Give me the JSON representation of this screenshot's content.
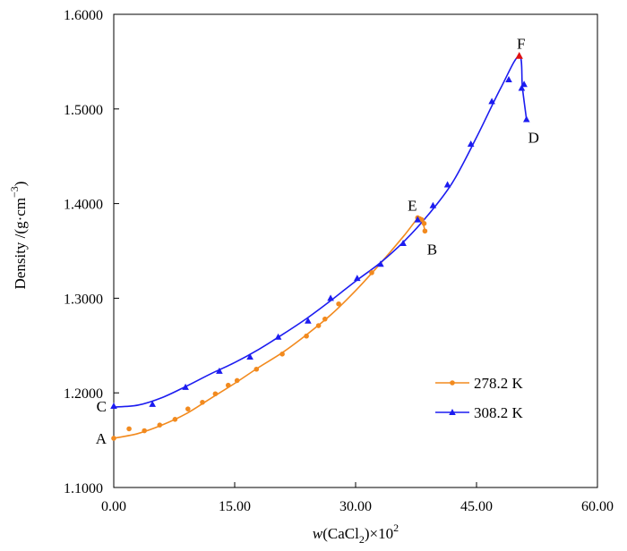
{
  "chart_data": {
    "type": "line",
    "title": "",
    "xlabel_parts": {
      "italic": "w",
      "before_sub": "(CaCl",
      "sub": "2",
      "after_sub": ")×10",
      "sup": "2"
    },
    "ylabel_parts": {
      "before_sup": "Density /(g·cm",
      "sup": "−3",
      "after_sup": ")"
    },
    "xlim": [
      0,
      60
    ],
    "ylim": [
      1.1,
      1.6
    ],
    "x_ticks": [
      0,
      15,
      30,
      45,
      60
    ],
    "x_tick_labels": [
      "0.00",
      "15.00",
      "30.00",
      "45.00",
      "60.00"
    ],
    "y_ticks": [
      1.1,
      1.2,
      1.3,
      1.4,
      1.5,
      1.6
    ],
    "y_tick_labels": [
      "1.1000",
      "1.2000",
      "1.3000",
      "1.4000",
      "1.5000",
      "1.6000"
    ],
    "legend_position": "bottom-right",
    "series": [
      {
        "name": "278.2 K",
        "color": "#f28a1e",
        "marker": "circle",
        "x": [
          0.0,
          1.9,
          3.8,
          5.7,
          7.6,
          9.2,
          11.0,
          12.6,
          14.2,
          15.3,
          17.7,
          20.9,
          23.9,
          25.4,
          26.2,
          27.9,
          32.0,
          37.7,
          38.2,
          38.5,
          38.6
        ],
        "y": [
          1.152,
          1.162,
          1.16,
          1.166,
          1.172,
          1.183,
          1.19,
          1.199,
          1.208,
          1.213,
          1.225,
          1.241,
          1.26,
          1.271,
          1.278,
          1.294,
          1.327,
          1.385,
          1.383,
          1.379,
          1.371
        ],
        "curve_x": [
          0,
          3,
          6,
          9,
          12,
          15,
          18,
          21,
          24,
          27,
          30,
          33,
          36,
          37.8,
          38.3,
          38.6
        ],
        "curve_y": [
          1.152,
          1.157,
          1.166,
          1.178,
          1.194,
          1.21,
          1.227,
          1.243,
          1.262,
          1.283,
          1.308,
          1.336,
          1.366,
          1.385,
          1.381,
          1.371
        ]
      },
      {
        "name": "308.2 K",
        "color": "#1c1cf0",
        "marker": "triangle",
        "x": [
          0.0,
          4.8,
          8.9,
          13.1,
          16.9,
          20.4,
          24.1,
          26.9,
          30.2,
          33.1,
          35.9,
          37.7,
          39.6,
          41.4,
          44.3,
          46.9,
          49.0,
          50.3,
          50.6,
          50.9,
          51.2
        ],
        "y": [
          1.186,
          1.188,
          1.206,
          1.223,
          1.238,
          1.259,
          1.276,
          1.3,
          1.321,
          1.336,
          1.358,
          1.383,
          1.398,
          1.42,
          1.463,
          1.508,
          1.531,
          1.556,
          1.522,
          1.526,
          1.489
        ],
        "curve_x": [
          0,
          3,
          6,
          9,
          12,
          15,
          18,
          21,
          24,
          27,
          30,
          33,
          36,
          39,
          42,
          45,
          48,
          50.3,
          50.7,
          51.2
        ],
        "curve_y": [
          1.185,
          1.187,
          1.195,
          1.207,
          1.22,
          1.232,
          1.246,
          1.262,
          1.279,
          1.298,
          1.318,
          1.337,
          1.36,
          1.388,
          1.422,
          1.47,
          1.522,
          1.556,
          1.522,
          1.489
        ]
      }
    ],
    "annotations": [
      {
        "label": "A",
        "x": 0.0,
        "y": 1.152,
        "anchor": "left"
      },
      {
        "label": "C",
        "x": 0.0,
        "y": 1.186,
        "anchor": "left"
      },
      {
        "label": "B",
        "x": 38.6,
        "y": 1.371,
        "anchor": "below"
      },
      {
        "label": "D",
        "x": 51.2,
        "y": 1.489,
        "anchor": "below"
      },
      {
        "label": "E",
        "x": 37.7,
        "y": 1.385,
        "anchor": "above"
      },
      {
        "label": "F",
        "x": 50.3,
        "y": 1.556,
        "anchor": "above"
      }
    ],
    "special_point": {
      "label": "F",
      "x": 50.3,
      "y": 1.556,
      "color": "#e01010"
    }
  }
}
